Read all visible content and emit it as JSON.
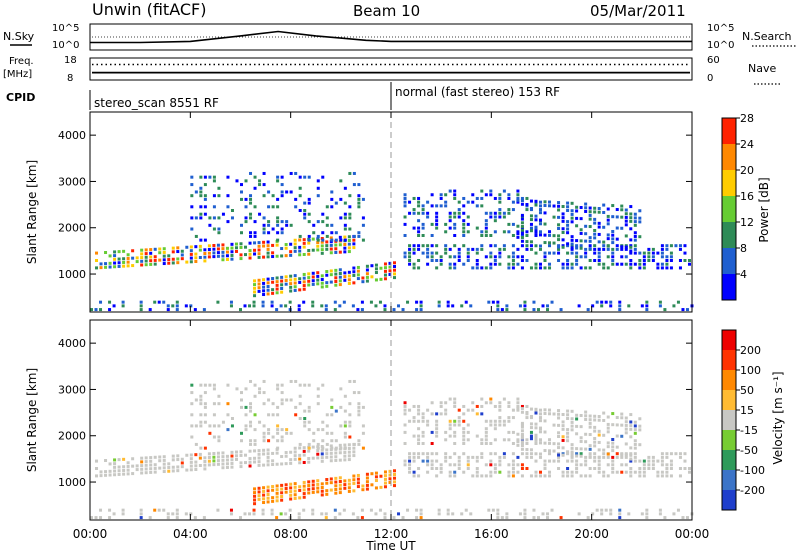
{
  "header": {
    "station": "Unwin (fitACF)",
    "beam": "Beam 10",
    "date": "05/Mar/2011"
  },
  "chart_data": [
    {
      "panel": "noise",
      "type": "line",
      "left_label": "N.Sky",
      "right_label": "N.Search",
      "left_ticks": [
        "10^5",
        "10^0"
      ],
      "right_ticks": [
        "10^5",
        "10^0"
      ],
      "x": [
        0,
        2,
        4,
        6,
        7.5,
        9,
        10,
        11,
        12,
        14,
        16,
        18,
        20,
        22,
        24
      ],
      "sky": [
        0.25,
        0.25,
        0.3,
        0.55,
        0.75,
        0.55,
        0.45,
        0.35,
        0.3,
        0.3,
        0.3,
        0.3,
        0.3,
        0.3,
        0.3
      ]
    },
    {
      "panel": "frequency",
      "type": "line",
      "left_label_top": "Freq.",
      "left_label_bottom": "[MHz]",
      "right_label": "Nave",
      "left_ticks": [
        "18",
        "8"
      ],
      "right_ticks": [
        "60",
        "0"
      ],
      "freq_level": 0.3,
      "nave_level": 0.75
    },
    {
      "panel": "cpid",
      "type": "table",
      "label": "CPID",
      "modes": [
        {
          "start": 0,
          "end": 12,
          "name": "stereo_scan 8551 RF"
        },
        {
          "start": 12,
          "end": 24,
          "name": "normal (fast stereo) 153 RF"
        }
      ]
    },
    {
      "panel": "power",
      "type": "heatmap",
      "ylabel": "Slant Range [km]",
      "ylim": [
        180,
        4500
      ],
      "yticks": [
        1000,
        2000,
        3000,
        4000
      ],
      "colorbar_label": "Power [dB]",
      "colorbar_ticks": [
        "4",
        "8",
        "12",
        "16",
        "20",
        "24",
        "28"
      ],
      "colors": [
        "#0000ff",
        "#1f5fd0",
        "#2e8b57",
        "#66cc33",
        "#ffcc00",
        "#ff8800",
        "#ff2200"
      ]
    },
    {
      "panel": "velocity",
      "type": "heatmap",
      "ylabel": "Slant Range [km]",
      "ylim": [
        180,
        4500
      ],
      "yticks": [
        1000,
        2000,
        3000,
        4000
      ],
      "colorbar_label": "Velocity [m s⁻¹]",
      "colorbar_ticks": [
        "200",
        "100",
        "50",
        "15",
        "-15",
        "-50",
        "-100",
        "-200"
      ],
      "colors": [
        "#1f3fcc",
        "#3b74c8",
        "#2e9a5a",
        "#77cc33",
        "#c8c8c4",
        "#ffbb33",
        "#ff8800",
        "#ff3300",
        "#ee0000"
      ]
    }
  ],
  "xaxis": {
    "label": "Time UT",
    "ticks": [
      "00:00",
      "04:00",
      "08:00",
      "12:00",
      "16:00",
      "20:00",
      "00:00"
    ],
    "range": [
      0,
      24
    ]
  }
}
